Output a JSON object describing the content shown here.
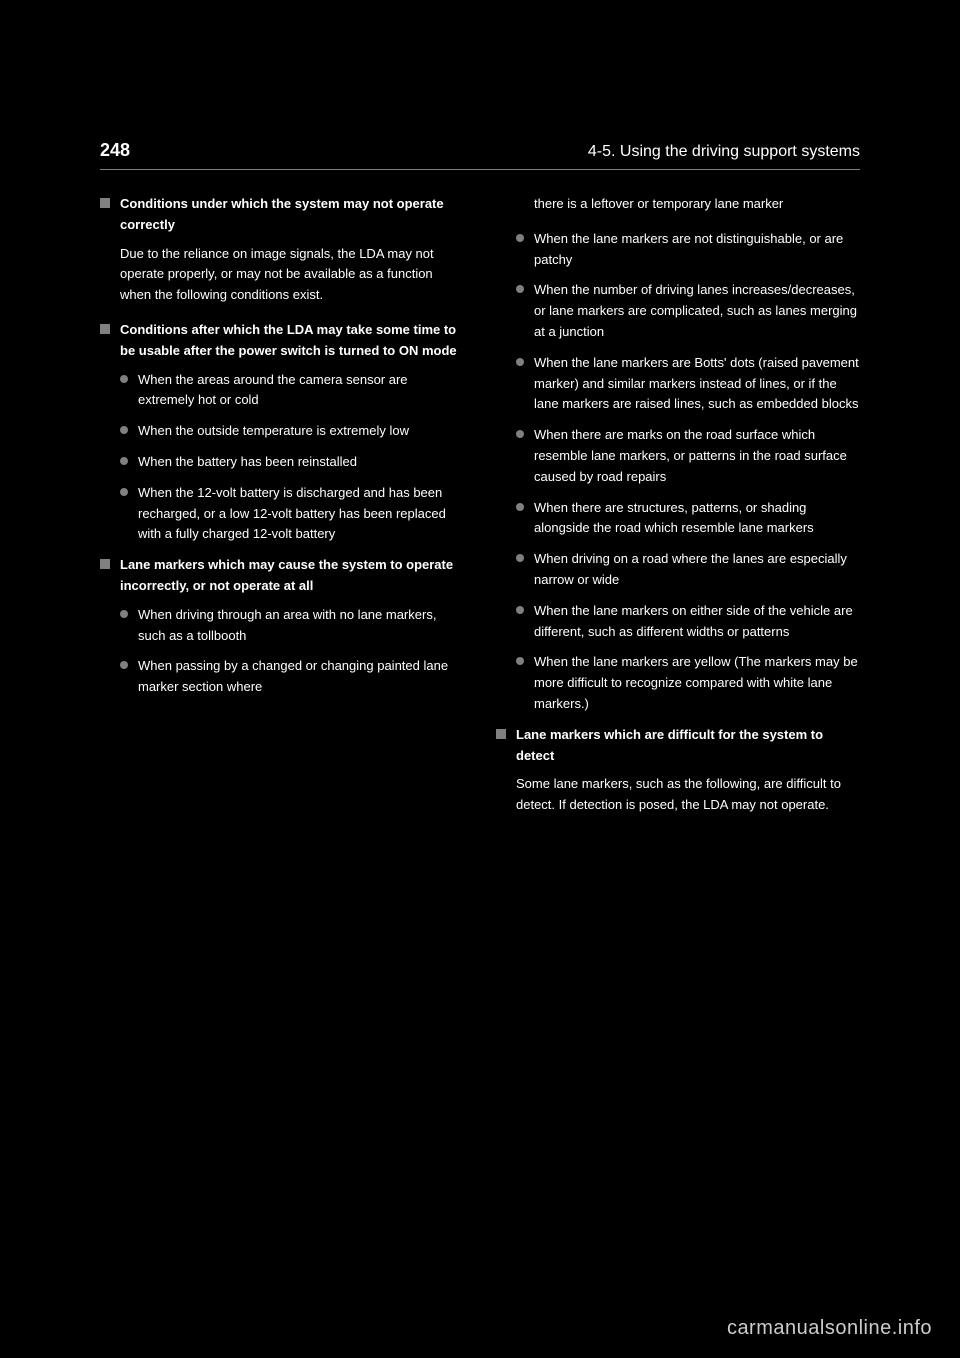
{
  "header": {
    "page_number": "248",
    "section": "4-5. Using the driving support systems"
  },
  "left_column": [
    {
      "type": "heading",
      "text": "Conditions under which the system may not operate correctly"
    },
    {
      "type": "body",
      "text": "Due to the reliance on image signals, the LDA may not operate properly, or may not be available as a function when the following conditions exist."
    },
    {
      "type": "heading",
      "text": "Conditions after which the LDA may take some time to be usable after the power switch is turned to ON mode"
    },
    {
      "type": "bullet",
      "text": "When the areas around the camera sensor are extremely hot or cold"
    },
    {
      "type": "bullet",
      "text": "When the outside temperature is extremely low"
    },
    {
      "type": "bullet",
      "text": "When the battery has been reinstalled"
    },
    {
      "type": "bullet",
      "text": "When the 12-volt battery is discharged and has been recharged, or a low 12-volt battery has been replaced with a fully charged 12-volt battery"
    },
    {
      "type": "heading",
      "text": "Lane markers which may cause the system to operate incorrectly, or not operate at all"
    },
    {
      "type": "bullet",
      "text": "When driving through an area with no lane markers, such as a tollbooth"
    },
    {
      "type": "bullet",
      "text": "When passing by a changed or changing painted lane marker section where"
    }
  ],
  "right_column": [
    {
      "type": "body_top",
      "text": "there is a leftover or temporary lane marker"
    },
    {
      "type": "bullet",
      "text": "When the lane markers are not distinguishable, or are patchy"
    },
    {
      "type": "bullet",
      "text": "When the number of driving lanes increases/decreases, or lane markers are complicated, such as lanes merging at a junction"
    },
    {
      "type": "bullet",
      "text": "When the lane markers are Botts' dots (raised pavement marker) and similar markers instead of lines, or if the lane markers are raised lines, such as embedded blocks"
    },
    {
      "type": "bullet",
      "text": "When there are marks on the road surface which resemble lane markers, or patterns in the road surface caused by road repairs"
    },
    {
      "type": "bullet",
      "text": "When there are structures, patterns, or shading alongside the road which resemble lane markers"
    },
    {
      "type": "bullet",
      "text": "When driving on a road where the lanes are especially narrow or wide"
    },
    {
      "type": "bullet",
      "text": "When the lane markers on either side of the vehicle are different, such as different widths or patterns"
    },
    {
      "type": "bullet",
      "text": "When the lane markers are yellow (The markers may be more difficult to recognize compared with white lane markers.)"
    },
    {
      "type": "heading",
      "text": "Lane markers which are difficult for the system to detect"
    },
    {
      "type": "body",
      "text": "Some lane markers, such as the following, are difficult to detect. If detection is posed, the LDA may not operate."
    }
  ],
  "watermark": "carmanualsonline.info",
  "colors": {
    "background": "#000000",
    "text": "#ffffff",
    "icon": "#808080",
    "divider": "#808080",
    "watermark": "#cccccc"
  }
}
